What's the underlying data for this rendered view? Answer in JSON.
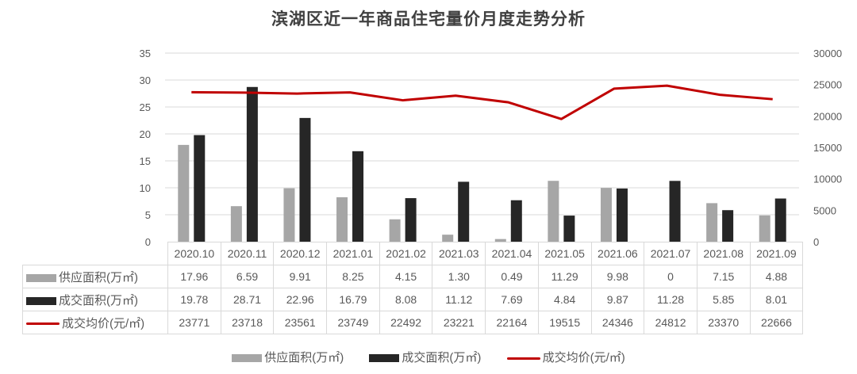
{
  "title": "滨湖区近一年商品住宅量价月度走势分析",
  "legend": {
    "supply": "供应面积(万㎡)",
    "deal": "成交面积(万㎡)",
    "price": "成交均价(元/㎡)"
  },
  "table": {
    "rows": {
      "supply_label": "供应面积(万㎡)",
      "deal_label": "成交面积(万㎡)",
      "price_label": "成交均价(元/㎡)"
    }
  },
  "colors": {
    "supply": "#a6a6a6",
    "deal": "#262626",
    "price": "#c00000",
    "grid": "#d9d9d9"
  },
  "chart_data": {
    "type": "bar",
    "title": "滨湖区近一年商品住宅量价月度走势分析",
    "categories": [
      "2020.10",
      "2020.11",
      "2020.12",
      "2021.01",
      "2021.02",
      "2021.03",
      "2021.04",
      "2021.05",
      "2021.06",
      "2021.07",
      "2021.08",
      "2021.09"
    ],
    "series": [
      {
        "name": "供应面积(万㎡)",
        "type": "bar",
        "axis": "left",
        "values": [
          17.96,
          6.59,
          9.91,
          8.25,
          4.15,
          1.3,
          0.49,
          11.29,
          9.98,
          0,
          7.15,
          4.88
        ],
        "display": [
          "17.96",
          "6.59",
          "9.91",
          "8.25",
          "4.15",
          "1.30",
          "0.49",
          "11.29",
          "9.98",
          "0",
          "7.15",
          "4.88"
        ]
      },
      {
        "name": "成交面积(万㎡)",
        "type": "bar",
        "axis": "left",
        "values": [
          19.78,
          28.71,
          22.96,
          16.79,
          8.08,
          11.12,
          7.69,
          4.84,
          9.87,
          11.28,
          5.85,
          8.01
        ],
        "display": [
          "19.78",
          "28.71",
          "22.96",
          "16.79",
          "8.08",
          "11.12",
          "7.69",
          "4.84",
          "9.87",
          "11.28",
          "5.85",
          "8.01"
        ]
      },
      {
        "name": "成交均价(元/㎡)",
        "type": "line",
        "axis": "right",
        "values": [
          23771,
          23718,
          23561,
          23749,
          22492,
          23221,
          22164,
          19515,
          24346,
          24812,
          23370,
          22666
        ],
        "display": [
          "23771",
          "23718",
          "23561",
          "23749",
          "22492",
          "23221",
          "22164",
          "19515",
          "24346",
          "24812",
          "23370",
          "22666"
        ]
      }
    ],
    "ylabel": "",
    "ylim": [
      0,
      35
    ],
    "yticks": [
      "0",
      "5",
      "10",
      "15",
      "20",
      "25",
      "30",
      "35"
    ],
    "y2lim": [
      0,
      30000
    ],
    "y2ticks": [
      "0",
      "5000",
      "10000",
      "15000",
      "20000",
      "25000",
      "30000"
    ],
    "grid": true,
    "legend_position": "bottom",
    "data_table": true
  }
}
